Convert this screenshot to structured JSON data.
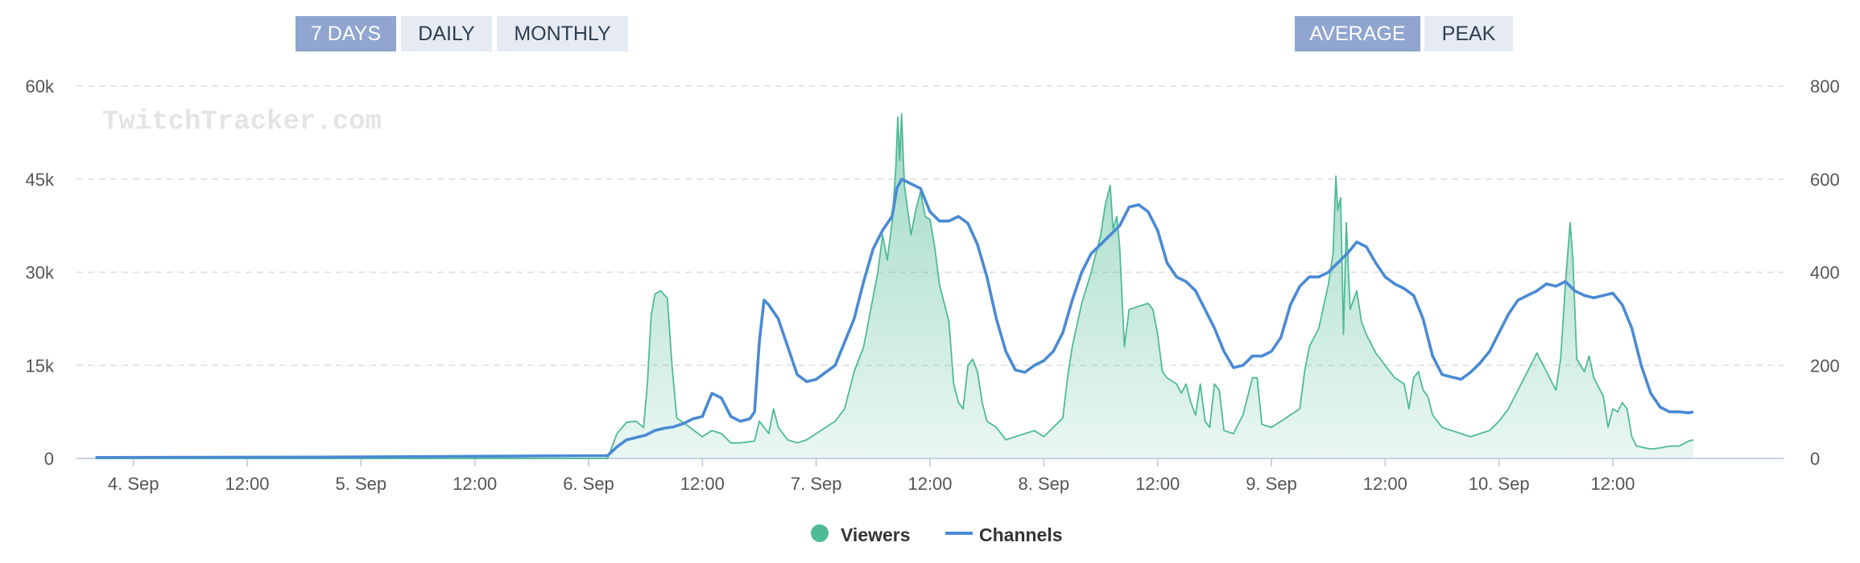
{
  "range_buttons": [
    {
      "label": "7 DAYS",
      "active": true
    },
    {
      "label": "DAILY",
      "active": false
    },
    {
      "label": "MONTHLY",
      "active": false
    }
  ],
  "mode_buttons": [
    {
      "label": "AVERAGE",
      "active": true
    },
    {
      "label": "PEAK",
      "active": false
    }
  ],
  "watermark": "TwitchTracker.com",
  "colors": {
    "viewers": "#4fba96",
    "viewers_fill": "#cdebe0",
    "channels": "#4a8ad4",
    "button_active": "#90a6d1",
    "button_inactive": "#e6ebf3",
    "grid": "#dddddd",
    "axis_text": "#555555"
  },
  "chart_data": {
    "type": "line",
    "x_tick_labels": [
      "4. Sep",
      "12:00",
      "5. Sep",
      "12:00",
      "6. Sep",
      "12:00",
      "7. Sep",
      "12:00",
      "8. Sep",
      "12:00",
      "9. Sep",
      "12:00",
      "10. Sep",
      "12:00"
    ],
    "x_unit": "hours since 4 Sep 00:00",
    "xlim": [
      -6,
      174
    ],
    "y_left": {
      "ticks": [
        "0",
        "15k",
        "30k",
        "45k",
        "60k"
      ],
      "lim": [
        0,
        60000
      ]
    },
    "y_right": {
      "ticks": [
        "0",
        "200",
        "400",
        "600",
        "800"
      ],
      "lim": [
        0,
        800
      ]
    },
    "grid": true,
    "legend": {
      "position": "bottom-center",
      "entries": [
        "Viewers",
        "Channels"
      ]
    },
    "series": [
      {
        "name": "Viewers",
        "axis": "left",
        "style": "area",
        "points": [
          [
            -4,
            0
          ],
          [
            40,
            0
          ],
          [
            50,
            0
          ],
          [
            51,
            4000
          ],
          [
            52,
            5800
          ],
          [
            53,
            6000
          ],
          [
            53.8,
            5000
          ],
          [
            54.2,
            12000
          ],
          [
            54.6,
            23000
          ],
          [
            55,
            26500
          ],
          [
            55.6,
            27000
          ],
          [
            56.3,
            25800
          ],
          [
            56.8,
            15000
          ],
          [
            57.3,
            6500
          ],
          [
            58.5,
            5200
          ],
          [
            60,
            3500
          ],
          [
            61,
            4500
          ],
          [
            62,
            4000
          ],
          [
            63,
            2500
          ],
          [
            64,
            2500
          ],
          [
            65.5,
            2800
          ],
          [
            66,
            6000
          ],
          [
            67,
            4000
          ],
          [
            67.5,
            8000
          ],
          [
            68,
            5000
          ],
          [
            69,
            3000
          ],
          [
            70,
            2500
          ],
          [
            71,
            3000
          ],
          [
            72,
            4000
          ],
          [
            73,
            5000
          ],
          [
            74,
            6000
          ],
          [
            75,
            8000
          ],
          [
            76,
            14000
          ],
          [
            77,
            18000
          ],
          [
            78,
            26000
          ],
          [
            78.5,
            30000
          ],
          [
            79,
            36000
          ],
          [
            79.5,
            32000
          ],
          [
            80,
            38000
          ],
          [
            80.4,
            47000
          ],
          [
            80.6,
            55000
          ],
          [
            80.8,
            48000
          ],
          [
            81,
            55500
          ],
          [
            81.3,
            44000
          ],
          [
            82,
            36000
          ],
          [
            82.5,
            40000
          ],
          [
            83,
            43000
          ],
          [
            83.5,
            39000
          ],
          [
            84,
            38500
          ],
          [
            84.5,
            34000
          ],
          [
            85,
            28000
          ],
          [
            86,
            22000
          ],
          [
            86.5,
            12000
          ],
          [
            87,
            9000
          ],
          [
            87.5,
            8000
          ],
          [
            88,
            15000
          ],
          [
            88.5,
            16000
          ],
          [
            89,
            14000
          ],
          [
            89.5,
            9000
          ],
          [
            90,
            6000
          ],
          [
            91,
            5000
          ],
          [
            92,
            3000
          ],
          [
            93,
            3500
          ],
          [
            94,
            4000
          ],
          [
            95,
            4500
          ],
          [
            96,
            3500
          ],
          [
            97,
            5000
          ],
          [
            98,
            6500
          ],
          [
            98.5,
            13000
          ],
          [
            99,
            18000
          ],
          [
            100,
            25000
          ],
          [
            101,
            30000
          ],
          [
            102,
            36000
          ],
          [
            102.5,
            41000
          ],
          [
            103,
            44000
          ],
          [
            103.3,
            37000
          ],
          [
            103.7,
            39000
          ],
          [
            104,
            34000
          ],
          [
            104.5,
            18000
          ],
          [
            105,
            24000
          ],
          [
            106,
            24500
          ],
          [
            107,
            25000
          ],
          [
            107.5,
            24000
          ],
          [
            108,
            20000
          ],
          [
            108.5,
            14000
          ],
          [
            109,
            13000
          ],
          [
            110,
            12000
          ],
          [
            110.5,
            10500
          ],
          [
            111,
            12000
          ],
          [
            111.5,
            9000
          ],
          [
            112,
            7000
          ],
          [
            112.5,
            12000
          ],
          [
            113,
            6000
          ],
          [
            113.5,
            5000
          ],
          [
            114,
            12000
          ],
          [
            114.5,
            11000
          ],
          [
            115,
            4500
          ],
          [
            116,
            4000
          ],
          [
            117,
            7000
          ],
          [
            117.5,
            10000
          ],
          [
            118,
            13000
          ],
          [
            118.5,
            13000
          ],
          [
            119,
            5500
          ],
          [
            120,
            5000
          ],
          [
            121,
            6000
          ],
          [
            122,
            7000
          ],
          [
            123,
            8000
          ],
          [
            123.5,
            14000
          ],
          [
            124,
            18000
          ],
          [
            125,
            21000
          ],
          [
            126,
            28000
          ],
          [
            126.5,
            33000
          ],
          [
            126.8,
            45500
          ],
          [
            127,
            40000
          ],
          [
            127.3,
            42000
          ],
          [
            127.6,
            20000
          ],
          [
            127.9,
            38000
          ],
          [
            128.3,
            24000
          ],
          [
            129,
            27000
          ],
          [
            129.5,
            22000
          ],
          [
            130,
            20000
          ],
          [
            131,
            17000
          ],
          [
            132,
            15000
          ],
          [
            133,
            13000
          ],
          [
            134,
            12000
          ],
          [
            134.5,
            8000
          ],
          [
            135,
            13000
          ],
          [
            135.5,
            14000
          ],
          [
            136,
            11000
          ],
          [
            136.5,
            10000
          ],
          [
            137,
            7000
          ],
          [
            138,
            5000
          ],
          [
            139,
            4500
          ],
          [
            140,
            4000
          ],
          [
            141,
            3500
          ],
          [
            142,
            4000
          ],
          [
            143,
            4500
          ],
          [
            144,
            6000
          ],
          [
            145,
            8000
          ],
          [
            146,
            11000
          ],
          [
            147,
            14000
          ],
          [
            148,
            17000
          ],
          [
            149,
            14000
          ],
          [
            150,
            11000
          ],
          [
            150.5,
            16000
          ],
          [
            151,
            28000
          ],
          [
            151.5,
            38000
          ],
          [
            151.8,
            32000
          ],
          [
            152.2,
            16000
          ],
          [
            153,
            14000
          ],
          [
            153.5,
            16500
          ],
          [
            154,
            13000
          ],
          [
            155,
            10000
          ],
          [
            155.5,
            5000
          ],
          [
            156,
            8000
          ],
          [
            156.5,
            7500
          ],
          [
            157,
            9000
          ],
          [
            157.5,
            8000
          ],
          [
            158,
            3500
          ],
          [
            158.5,
            2000
          ],
          [
            160,
            1500
          ],
          [
            161,
            1700
          ],
          [
            162,
            2000
          ],
          [
            163,
            2000
          ],
          [
            164,
            2800
          ],
          [
            164.5,
            3000
          ]
        ]
      },
      {
        "name": "Channels",
        "axis": "right",
        "style": "line",
        "points": [
          [
            -4,
            2
          ],
          [
            20,
            3
          ],
          [
            40,
            5
          ],
          [
            50,
            6
          ],
          [
            51,
            25
          ],
          [
            52,
            40
          ],
          [
            53,
            45
          ],
          [
            54,
            50
          ],
          [
            55,
            60
          ],
          [
            56,
            65
          ],
          [
            57,
            68
          ],
          [
            58,
            75
          ],
          [
            59,
            85
          ],
          [
            60,
            90
          ],
          [
            61,
            140
          ],
          [
            62,
            130
          ],
          [
            63,
            90
          ],
          [
            64,
            80
          ],
          [
            65,
            85
          ],
          [
            65.5,
            100
          ],
          [
            66,
            250
          ],
          [
            66.5,
            340
          ],
          [
            67,
            330
          ],
          [
            68,
            300
          ],
          [
            69,
            240
          ],
          [
            70,
            180
          ],
          [
            71,
            165
          ],
          [
            72,
            170
          ],
          [
            73,
            185
          ],
          [
            74,
            200
          ],
          [
            75,
            250
          ],
          [
            76,
            300
          ],
          [
            77,
            380
          ],
          [
            78,
            450
          ],
          [
            79,
            490
          ],
          [
            80,
            520
          ],
          [
            80.5,
            580
          ],
          [
            81,
            600
          ],
          [
            82,
            590
          ],
          [
            83,
            580
          ],
          [
            84,
            530
          ],
          [
            85,
            510
          ],
          [
            86,
            510
          ],
          [
            87,
            520
          ],
          [
            88,
            505
          ],
          [
            89,
            460
          ],
          [
            90,
            390
          ],
          [
            91,
            300
          ],
          [
            92,
            230
          ],
          [
            93,
            190
          ],
          [
            94,
            185
          ],
          [
            95,
            200
          ],
          [
            96,
            210
          ],
          [
            97,
            230
          ],
          [
            98,
            270
          ],
          [
            99,
            340
          ],
          [
            100,
            400
          ],
          [
            101,
            440
          ],
          [
            102,
            460
          ],
          [
            103,
            480
          ],
          [
            104,
            500
          ],
          [
            105,
            540
          ],
          [
            106,
            545
          ],
          [
            107,
            530
          ],
          [
            108,
            490
          ],
          [
            109,
            420
          ],
          [
            110,
            390
          ],
          [
            111,
            380
          ],
          [
            112,
            360
          ],
          [
            113,
            320
          ],
          [
            114,
            280
          ],
          [
            115,
            230
          ],
          [
            116,
            195
          ],
          [
            117,
            200
          ],
          [
            118,
            220
          ],
          [
            119,
            220
          ],
          [
            120,
            230
          ],
          [
            121,
            260
          ],
          [
            122,
            330
          ],
          [
            123,
            370
          ],
          [
            124,
            390
          ],
          [
            125,
            390
          ],
          [
            126,
            400
          ],
          [
            127,
            420
          ],
          [
            128,
            440
          ],
          [
            129,
            465
          ],
          [
            130,
            455
          ],
          [
            131,
            420
          ],
          [
            132,
            390
          ],
          [
            133,
            375
          ],
          [
            134,
            365
          ],
          [
            135,
            350
          ],
          [
            136,
            300
          ],
          [
            137,
            220
          ],
          [
            138,
            180
          ],
          [
            139,
            175
          ],
          [
            140,
            170
          ],
          [
            141,
            185
          ],
          [
            142,
            205
          ],
          [
            143,
            230
          ],
          [
            144,
            270
          ],
          [
            145,
            310
          ],
          [
            146,
            340
          ],
          [
            147,
            350
          ],
          [
            148,
            360
          ],
          [
            149,
            375
          ],
          [
            150,
            370
          ],
          [
            151,
            380
          ],
          [
            152,
            360
          ],
          [
            153,
            350
          ],
          [
            154,
            345
          ],
          [
            155,
            350
          ],
          [
            156,
            355
          ],
          [
            157,
            330
          ],
          [
            158,
            280
          ],
          [
            159,
            200
          ],
          [
            160,
            140
          ],
          [
            161,
            110
          ],
          [
            162,
            100
          ],
          [
            163,
            100
          ],
          [
            164,
            98
          ],
          [
            164.5,
            100
          ]
        ]
      }
    ]
  }
}
